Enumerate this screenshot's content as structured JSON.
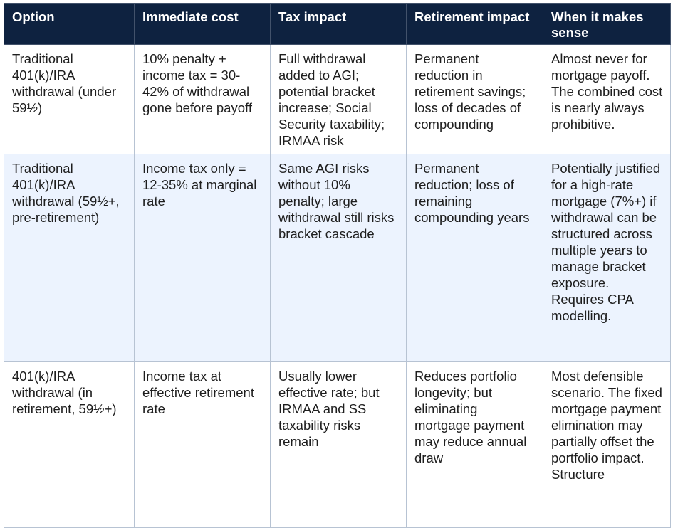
{
  "table": {
    "headers": [
      "Option",
      "Immediate cost",
      "Tax impact",
      "Retirement impact",
      "When it makes sense"
    ],
    "rows": [
      {
        "option": "Traditional 401(k)/IRA withdrawal (under 59½)",
        "immediate_cost": "10% penalty + income tax = 30-42% of withdrawal gone before payoff",
        "tax_impact": "Full withdrawal added to AGI; potential bracket increase; Social Security taxability; IRMAA risk",
        "retirement_impact": "Permanent reduction in retirement savings; loss of decades of compounding",
        "when_it_makes_sense": "Almost never for mortgage payoff. The combined cost is nearly always prohibitive."
      },
      {
        "option": "Traditional 401(k)/IRA withdrawal (59½+, pre-retirement)",
        "immediate_cost": "Income tax only = 12-35% at marginal rate",
        "tax_impact": "Same AGI risks without 10% penalty; large withdrawal still risks bracket cascade",
        "retirement_impact": "Permanent reduction; loss of remaining compounding years",
        "when_it_makes_sense": "Potentially justified for a high-rate mortgage (7%+) if withdrawal can be structured across multiple years to manage bracket exposure. Requires CPA modelling."
      },
      {
        "option": "401(k)/IRA withdrawal (in retirement, 59½+)",
        "immediate_cost": "Income tax at effective retirement rate",
        "tax_impact": "Usually lower effective rate; but IRMAA and SS taxability risks remain",
        "retirement_impact": "Reduces portfolio longevity; but eliminating mortgage payment may reduce annual draw",
        "when_it_makes_sense": "Most defensible scenario. The fixed mortgage payment elimination may partially offset the portfolio impact. Structure"
      }
    ]
  }
}
